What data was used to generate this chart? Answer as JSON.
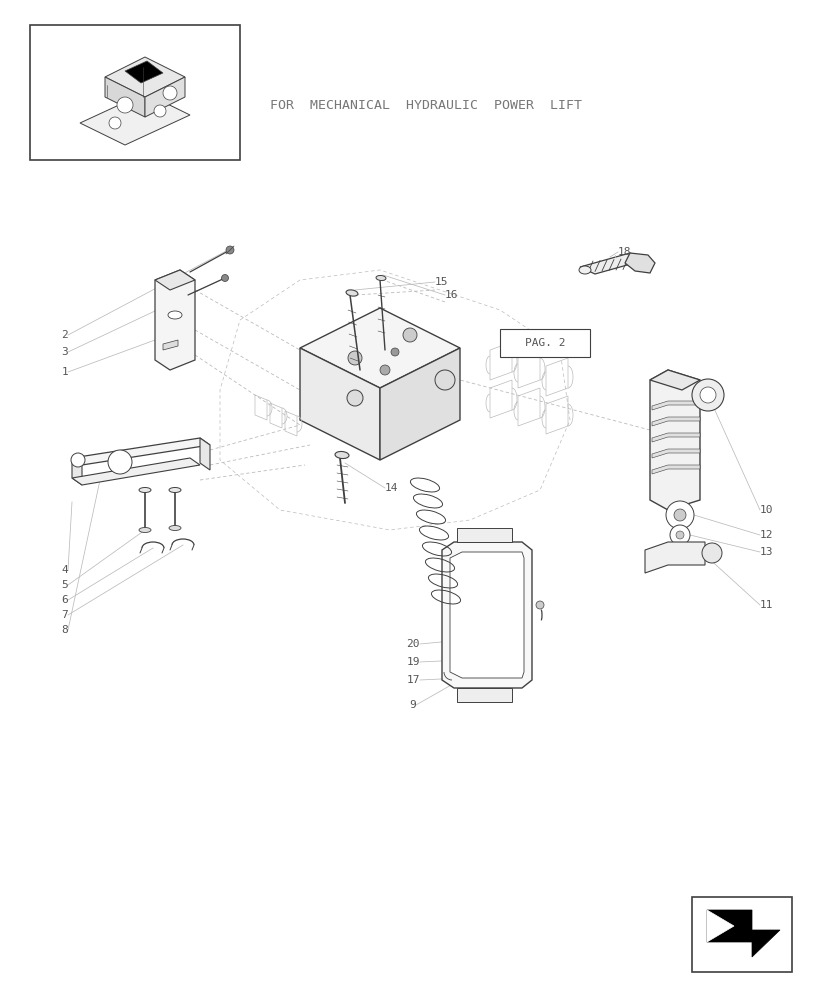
{
  "bg_color": "#ffffff",
  "line_color": "#404040",
  "light_line_color": "#bbbbbb",
  "text_color": "#555555",
  "title_text": "FOR  MECHANICAL  HYDRAULIC  POWER  LIFT",
  "pag2_text": "PAG. 2",
  "fig_width": 8.28,
  "fig_height": 10.0,
  "dpi": 100
}
